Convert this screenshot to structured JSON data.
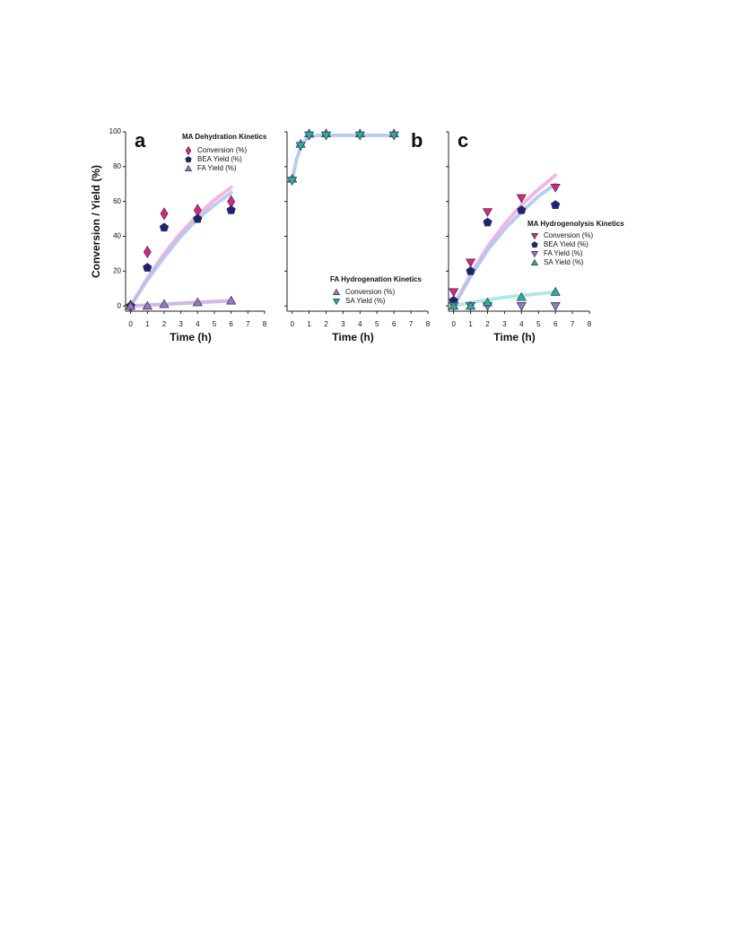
{
  "chart_data": [
    {
      "type": "scatter",
      "panel": "a",
      "title": "MA Dehydration Kinetics",
      "xlabel": "Time (h)",
      "ylabel": "Conversion / Yield (%)",
      "xlim": [
        -0.3,
        8
      ],
      "xticks": [
        0,
        1,
        2,
        3,
        4,
        5,
        6,
        7,
        8
      ],
      "ylim": [
        -3,
        100
      ],
      "yticks": [
        0,
        20,
        40,
        60,
        80,
        100
      ],
      "ytick_labels": true,
      "series": [
        {
          "name": "Conversion (%)",
          "color": "#e0218a",
          "marker": "diamond",
          "x": [
            0,
            1,
            2,
            4,
            6
          ],
          "values": [
            0,
            31,
            53,
            55,
            60
          ]
        },
        {
          "name": "BEA Yield (%)",
          "color": "#1a237e",
          "marker": "pentagon",
          "x": [
            0,
            1,
            2,
            4,
            6
          ],
          "values": [
            0,
            22,
            45,
            50,
            55
          ]
        },
        {
          "name": "FA Yield (%)",
          "color": "#9575cd",
          "marker": "triangle-up",
          "x": [
            0,
            1,
            2,
            4,
            6
          ],
          "values": [
            0,
            0,
            1,
            2,
            3
          ]
        }
      ],
      "fits": [
        {
          "color": "#f5a8dc",
          "x": [
            0,
            1,
            2,
            3,
            4,
            5,
            6
          ],
          "values": [
            0,
            16,
            30,
            42,
            52,
            61,
            68
          ]
        },
        {
          "color": "#aac4ee",
          "x": [
            0,
            1,
            2,
            3,
            4,
            5,
            6
          ],
          "values": [
            0,
            15,
            28,
            40,
            50,
            58,
            65
          ]
        },
        {
          "color": "#c4ace4",
          "x": [
            0,
            2,
            4,
            6
          ],
          "values": [
            0,
            1,
            2,
            3
          ]
        }
      ]
    },
    {
      "type": "scatter",
      "panel": "b",
      "title": "FA Hydrogenation Kinetics",
      "xlabel": "Time (h)",
      "xlim": [
        -0.3,
        8
      ],
      "xticks": [
        0,
        1,
        2,
        3,
        4,
        5,
        6,
        7,
        8
      ],
      "ylim": [
        -3,
        100
      ],
      "yticks": [
        0,
        20,
        40,
        60,
        80,
        100
      ],
      "ytick_labels": false,
      "series": [
        {
          "name": "Conversion (%)",
          "color": "#a070d0",
          "marker": "triangle-up",
          "x": [
            0,
            0.5,
            1,
            2,
            4,
            6
          ],
          "values": [
            73,
            93,
            99,
            99,
            99,
            99
          ]
        },
        {
          "name": "SA Yield (%)",
          "color": "#20b2aa",
          "marker": "triangle-down",
          "x": [
            0,
            0.5,
            1,
            2,
            4,
            6
          ],
          "values": [
            72,
            92,
            98,
            98,
            98,
            98
          ]
        }
      ],
      "fits": [
        {
          "color": "#aac4ee",
          "x": [
            0,
            0.25,
            0.5,
            0.75,
            1,
            1.5,
            2,
            4,
            6
          ],
          "values": [
            72,
            84,
            91,
            95,
            97,
            98,
            98,
            98,
            98
          ]
        }
      ]
    },
    {
      "type": "scatter",
      "panel": "c",
      "title": "MA Hydrogenolysis Kinetics",
      "xlabel": "Time (h)",
      "xlim": [
        -0.3,
        8
      ],
      "xticks": [
        0,
        1,
        2,
        3,
        4,
        5,
        6,
        7,
        8
      ],
      "ylim": [
        -3,
        100
      ],
      "yticks": [
        0,
        20,
        40,
        60,
        80,
        100
      ],
      "ytick_labels": false,
      "series": [
        {
          "name": "Conversion (%)",
          "color": "#e0218a",
          "marker": "triangle-down",
          "x": [
            0,
            1,
            2,
            4,
            6
          ],
          "values": [
            8,
            25,
            54,
            62,
            68
          ]
        },
        {
          "name": "BEA Yield (%)",
          "color": "#1a237e",
          "marker": "pentagon",
          "x": [
            0,
            1,
            2,
            4,
            6
          ],
          "values": [
            3,
            20,
            48,
            55,
            58
          ]
        },
        {
          "name": "FA Yield (%)",
          "color": "#9575cd",
          "marker": "triangle-down",
          "x": [
            0,
            1,
            2,
            4,
            6
          ],
          "values": [
            0,
            0,
            0,
            0,
            0
          ]
        },
        {
          "name": "SA Yield (%)",
          "color": "#20b2aa",
          "marker": "triangle-up",
          "x": [
            0,
            1,
            2,
            4,
            6
          ],
          "values": [
            0,
            0,
            2,
            5,
            8
          ]
        }
      ],
      "fits": [
        {
          "color": "#f5a8dc",
          "x": [
            0,
            1,
            2,
            3,
            4,
            5,
            6
          ],
          "values": [
            0,
            18,
            34,
            47,
            58,
            67,
            75
          ]
        },
        {
          "color": "#aac4ee",
          "x": [
            0,
            1,
            2,
            3,
            4,
            5,
            6
          ],
          "values": [
            0,
            17,
            32,
            44,
            54,
            63,
            70
          ]
        },
        {
          "color": "#a4e4e4",
          "x": [
            0,
            1,
            2,
            3,
            4,
            5,
            6
          ],
          "values": [
            0,
            2,
            3.5,
            5,
            6,
            7,
            8
          ]
        }
      ]
    }
  ]
}
